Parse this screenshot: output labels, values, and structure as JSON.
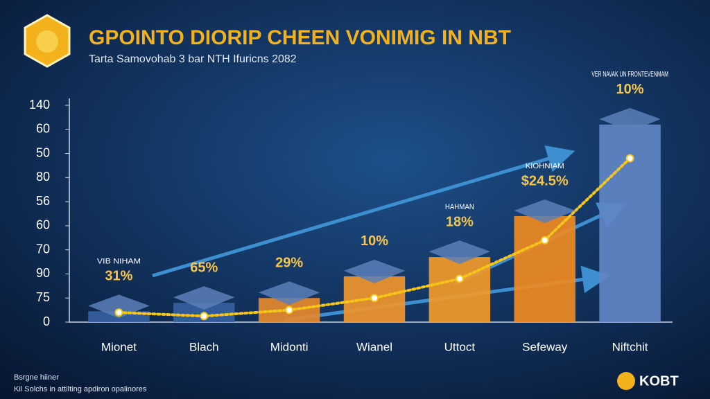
{
  "chart_data": {
    "type": "bar",
    "title": "GPOINTO DIORIP CHEEN VONIMIG IN NBT",
    "subtitle": "Tarta Samovohab 3 bar NTH Ifuricns 2082",
    "categories": [
      "Mionet",
      "Blach",
      "Midonti",
      "Wianel",
      "Uttoct",
      "Sefeway",
      "Niftchit"
    ],
    "series": [
      {
        "name": null,
        "type": "bar",
        "colors": [
          "#35609f",
          "#35609f",
          "#e5892c",
          "#f0952c",
          "#f29a2a",
          "#ef8a22",
          "#5f86c4"
        ],
        "values": [
          0.45,
          0.8,
          1.0,
          1.9,
          2.7,
          4.4,
          8.2
        ]
      },
      {
        "name": null,
        "type": "line",
        "color": "#f5c518",
        "values": [
          0.4,
          0.25,
          0.5,
          1.0,
          1.8,
          3.4,
          6.8
        ]
      }
    ],
    "bar_titles": [
      "VIB NIHAM",
      null,
      null,
      null,
      "HAHMAN",
      "KIOHNIAM",
      "VER NAVAK UN FRONTEVENMAM"
    ],
    "bar_labels": [
      "31%",
      "65%",
      "29%",
      "10%",
      "18%",
      "$24.5%",
      "10%"
    ],
    "ylim": [
      0,
      9
    ],
    "yticks": [
      {
        "value": 0,
        "label": "0"
      },
      {
        "value": 1,
        "label": "75"
      },
      {
        "value": 2,
        "label": "90"
      },
      {
        "value": 3,
        "label": "70"
      },
      {
        "value": 4,
        "label": "60"
      },
      {
        "value": 5,
        "label": "56"
      },
      {
        "value": 6,
        "label": "80"
      },
      {
        "value": 7,
        "label": "50"
      },
      {
        "value": 8,
        "label": "60"
      },
      {
        "value": 9,
        "label": "140"
      }
    ],
    "footer": [
      "Bsrgne hiiner",
      "Kil Solchs in attilting apdiron opalinores"
    ],
    "brand": "KOBT"
  }
}
